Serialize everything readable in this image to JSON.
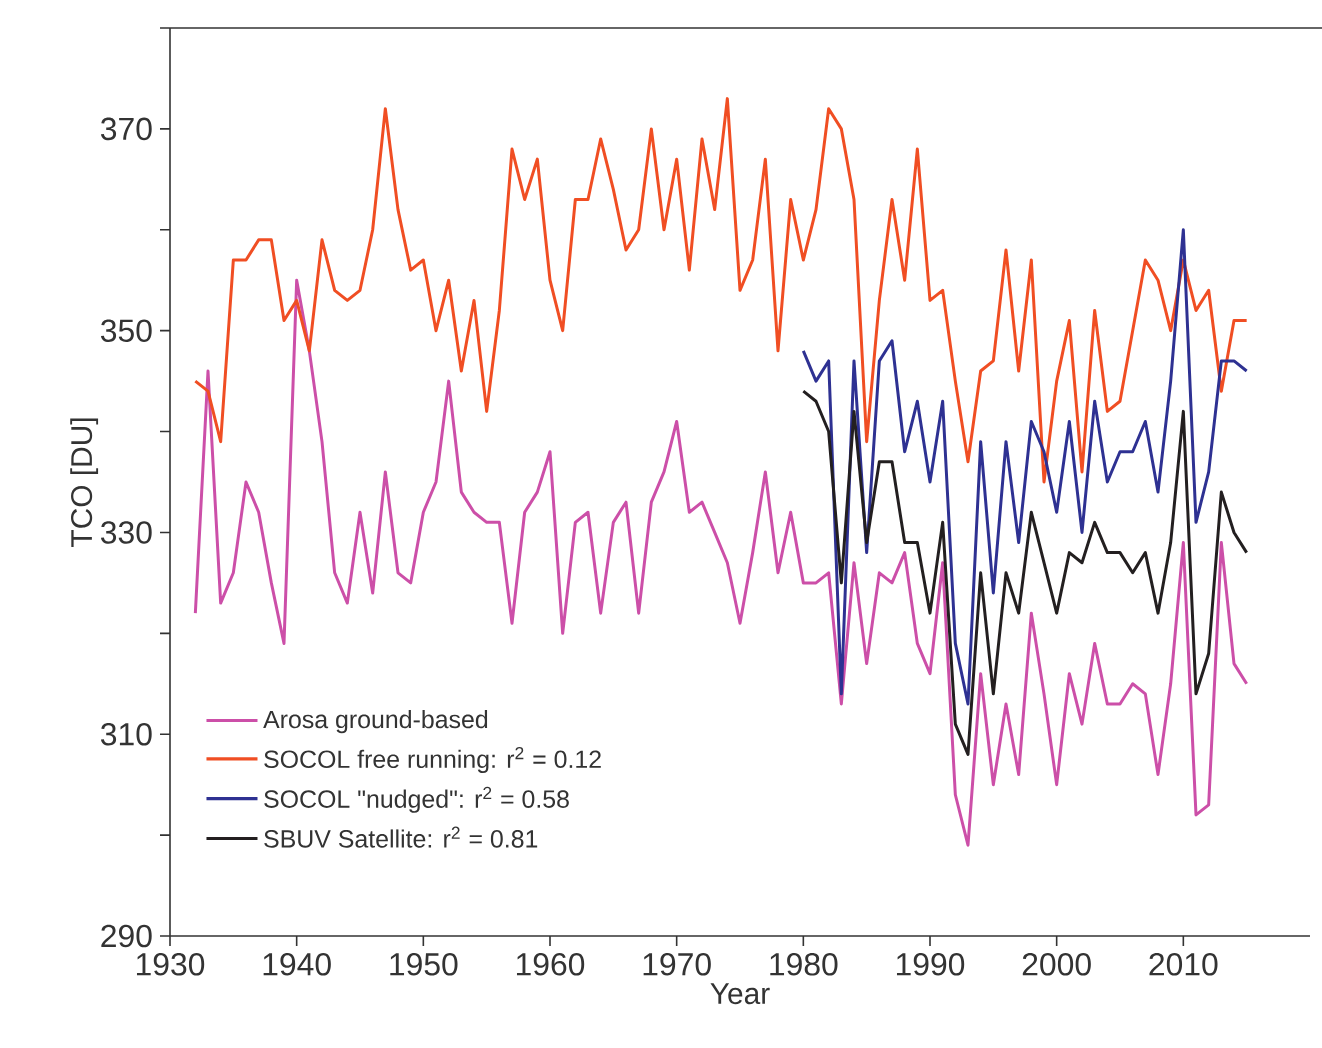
{
  "chart_data": {
    "type": "line",
    "xlabel": "Year",
    "ylabel": "TCO [DU]",
    "x": [
      1932,
      1933,
      1934,
      1935,
      1936,
      1937,
      1938,
      1939,
      1940,
      1941,
      1942,
      1943,
      1944,
      1945,
      1946,
      1947,
      1948,
      1949,
      1950,
      1951,
      1952,
      1953,
      1954,
      1955,
      1956,
      1957,
      1958,
      1959,
      1960,
      1961,
      1962,
      1963,
      1964,
      1965,
      1966,
      1967,
      1968,
      1969,
      1970,
      1971,
      1972,
      1973,
      1974,
      1975,
      1976,
      1977,
      1978,
      1979,
      1980,
      1981,
      1982,
      1983,
      1984,
      1985,
      1986,
      1987,
      1988,
      1989,
      1990,
      1991,
      1992,
      1993,
      1994,
      1995,
      1996,
      1997,
      1998,
      1999,
      2000,
      2001,
      2002,
      2003,
      2004,
      2005,
      2006,
      2007,
      2008,
      2009,
      2010,
      2011,
      2012,
      2013,
      2014,
      2015
    ],
    "series": [
      {
        "name": "Arosa ground-based",
        "color": "#cc4fa8",
        "values": [
          322,
          346,
          323,
          326,
          335,
          332,
          325,
          319,
          355,
          348,
          339,
          326,
          323,
          332,
          324,
          336,
          326,
          325,
          332,
          335,
          345,
          334,
          332,
          331,
          331,
          321,
          332,
          334,
          338,
          320,
          331,
          332,
          322,
          331,
          333,
          322,
          333,
          336,
          341,
          332,
          333,
          330,
          327,
          321,
          328,
          336,
          326,
          332,
          325,
          325,
          326,
          313,
          327,
          317,
          326,
          325,
          328,
          319,
          316,
          327,
          304,
          299,
          316,
          305,
          313,
          306,
          322,
          314,
          305,
          316,
          311,
          319,
          313,
          313,
          315,
          314,
          306,
          315,
          329,
          302,
          303,
          329,
          317,
          315
        ]
      },
      {
        "name": "SOCOL free running: r$^{2}$ = 0.12",
        "color": "#f04e23",
        "values": [
          345,
          344,
          339,
          357,
          357,
          359,
          359,
          351,
          353,
          348,
          359,
          354,
          353,
          354,
          360,
          372,
          362,
          356,
          357,
          350,
          355,
          346,
          353,
          342,
          352,
          368,
          363,
          367,
          355,
          350,
          363,
          363,
          369,
          364,
          358,
          360,
          370,
          360,
          367,
          356,
          369,
          362,
          373,
          354,
          357,
          367,
          348,
          363,
          357,
          362,
          372,
          370,
          363,
          339,
          353,
          363,
          355,
          368,
          353,
          354,
          345,
          337,
          346,
          347,
          358,
          346,
          357,
          335,
          345,
          351,
          336,
          352,
          342,
          343,
          350,
          357,
          355,
          350,
          357,
          352,
          354,
          344,
          351,
          351
        ]
      },
      {
        "name": "SOCOL \"nudged\": r$^{2}$ = 0.58",
        "color": "#2e3192",
        "x": [
          1980,
          1981,
          1982,
          1983,
          1984,
          1985,
          1986,
          1987,
          1988,
          1989,
          1990,
          1991,
          1992,
          1993,
          1994,
          1995,
          1996,
          1997,
          1998,
          1999,
          2000,
          2001,
          2002,
          2003,
          2004,
          2005,
          2006,
          2007,
          2008,
          2009,
          2010,
          2011,
          2012,
          2013,
          2014,
          2015
        ],
        "values": [
          348,
          345,
          347,
          314,
          347,
          328,
          347,
          349,
          338,
          343,
          335,
          343,
          319,
          313,
          339,
          324,
          339,
          329,
          341,
          338,
          332,
          341,
          330,
          343,
          335,
          338,
          338,
          341,
          334,
          345,
          360,
          331,
          336,
          347,
          347,
          346
        ]
      },
      {
        "name": "SBUV Satellite: r$^{2}$ = 0.81",
        "color": "#231f20",
        "x": [
          1980,
          1981,
          1982,
          1983,
          1984,
          1985,
          1986,
          1987,
          1988,
          1989,
          1990,
          1991,
          1992,
          1993,
          1994,
          1995,
          1996,
          1997,
          1998,
          1999,
          2000,
          2001,
          2002,
          2003,
          2004,
          2005,
          2006,
          2007,
          2008,
          2009,
          2010,
          2011,
          2012,
          2013,
          2014,
          2015
        ],
        "values": [
          344,
          343,
          340,
          325,
          342,
          329,
          337,
          337,
          329,
          329,
          322,
          331,
          311,
          308,
          326,
          314,
          326,
          322,
          332,
          327,
          322,
          328,
          327,
          331,
          328,
          328,
          326,
          328,
          322,
          329,
          342,
          314,
          318,
          334,
          330,
          328
        ]
      }
    ],
    "xlim": [
      1930,
      2020
    ],
    "ylim": [
      290,
      380
    ],
    "xticks": [
      1930,
      1940,
      1950,
      1960,
      1970,
      1980,
      1990,
      2000,
      2010
    ],
    "yticks": [
      290,
      {
        "value": 300,
        "label": null
      },
      310,
      {
        "value": 320,
        "label": null
      },
      330,
      {
        "value": 340,
        "label": null
      },
      350,
      {
        "value": 360,
        "label": null
      },
      370,
      {
        "value": 380,
        "label": null
      }
    ],
    "grid": false,
    "legend": "bottom left",
    "marker": "none",
    "line_style": "solid"
  }
}
